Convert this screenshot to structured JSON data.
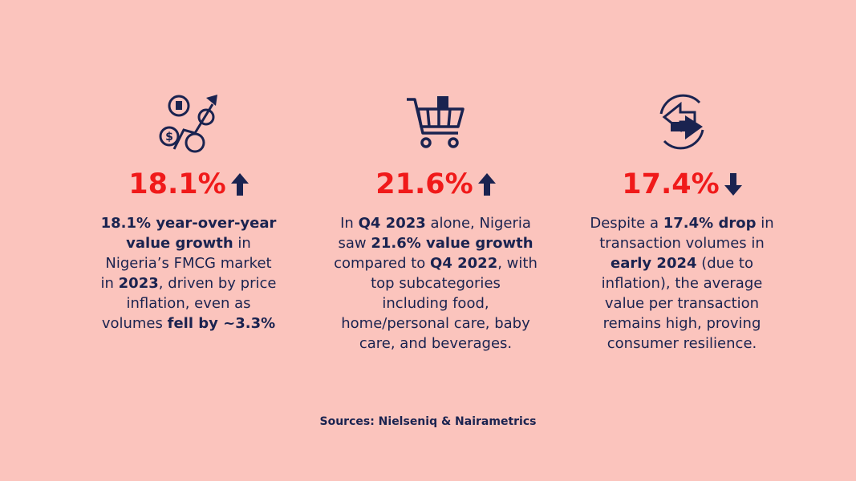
{
  "stats": [
    {
      "value": "18.1%",
      "direction": "up",
      "lines": [
        [
          {
            "text": "18.1% year-over-year",
            "bold": true
          }
        ],
        [
          {
            "text": "value growth",
            "bold": true
          },
          {
            "text": " in"
          }
        ],
        [
          {
            "text": "Nigeria’s FMCG market"
          }
        ],
        [
          {
            "text": "in "
          },
          {
            "text": "2023",
            "bold": true
          },
          {
            "text": ", driven by price"
          }
        ],
        [
          {
            "text": "inflation, even as"
          }
        ],
        [
          {
            "text": "volumes "
          },
          {
            "text": "fell by ~3.3%",
            "bold": true
          }
        ]
      ]
    },
    {
      "value": "21.6%",
      "direction": "up",
      "lines": [
        [
          {
            "text": "In "
          },
          {
            "text": "Q4 2023",
            "bold": true
          },
          {
            "text": " alone, Nigeria"
          }
        ],
        [
          {
            "text": "saw "
          },
          {
            "text": "21.6% value growth",
            "bold": true
          }
        ],
        [
          {
            "text": "compared to "
          },
          {
            "text": "Q4 2022",
            "bold": true
          },
          {
            "text": ", with"
          }
        ],
        [
          {
            "text": "top subcategories"
          }
        ],
        [
          {
            "text": "including food,"
          }
        ],
        [
          {
            "text": "home/personal care, baby"
          }
        ],
        [
          {
            "text": "care, and beverages."
          }
        ]
      ]
    },
    {
      "value": "17.4%",
      "direction": "down",
      "lines": [
        [
          {
            "text": "Despite a "
          },
          {
            "text": "17.4% drop",
            "bold": true
          },
          {
            "text": " in"
          }
        ],
        [
          {
            "text": "transaction volumes in"
          }
        ],
        [
          {
            "text": "early 2024",
            "bold": true
          },
          {
            "text": " (due to"
          }
        ],
        [
          {
            "text": "inflation), the average"
          }
        ],
        [
          {
            "text": "value per transaction"
          }
        ],
        [
          {
            "text": "remains high, proving"
          }
        ],
        [
          {
            "text": "consumer resilience."
          }
        ]
      ]
    }
  ],
  "sources": "Sources: Nielseniq & Nairametrics"
}
